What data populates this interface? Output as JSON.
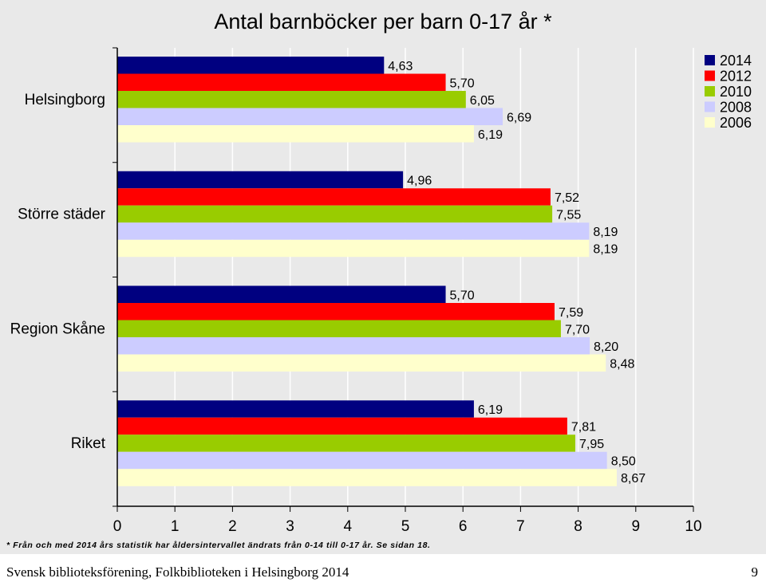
{
  "chart_data": {
    "type": "bar",
    "orientation": "horizontal",
    "title": "Antal barnböcker per barn 0-17 år *",
    "categories": [
      "Helsingborg",
      "Större städer",
      "Region Skåne",
      "Riket"
    ],
    "series": [
      {
        "name": "2014",
        "color": "#000080",
        "values": [
          4.63,
          4.96,
          5.7,
          6.19
        ],
        "labels": [
          "4,63",
          "4,96",
          "5,70",
          "6,19"
        ]
      },
      {
        "name": "2012",
        "color": "#ff0000",
        "values": [
          5.7,
          7.52,
          7.59,
          7.81
        ],
        "labels": [
          "5,70",
          "7,52",
          "7,59",
          "7,81"
        ]
      },
      {
        "name": "2010",
        "color": "#99cc00",
        "values": [
          6.05,
          7.55,
          7.7,
          7.95
        ],
        "labels": [
          "6,05",
          "7,55",
          "7,70",
          "7,95"
        ]
      },
      {
        "name": "2008",
        "color": "#ccccff",
        "values": [
          6.69,
          8.19,
          8.2,
          8.5
        ],
        "labels": [
          "6,69",
          "8,19",
          "8,20",
          "8,50"
        ]
      },
      {
        "name": "2006",
        "color": "#ffffcc",
        "values": [
          6.19,
          8.19,
          8.48,
          8.67
        ],
        "labels": [
          "6,19",
          "8,19",
          "8,48",
          "8,67"
        ]
      }
    ],
    "xlim": [
      0,
      10
    ],
    "xticks": [
      "0",
      "1",
      "2",
      "3",
      "4",
      "5",
      "6",
      "7",
      "8",
      "9",
      "10"
    ],
    "grid": true,
    "legend": "top-right"
  },
  "footnote": "* Från och med 2014 års statistik har åldersintervallet ändrats från 0-14 till 0-17 år. Se sidan 18.",
  "footer": {
    "text": "Svensk biblioteksförening, Folkbiblioteken i Helsingborg 2014",
    "page": "9"
  }
}
